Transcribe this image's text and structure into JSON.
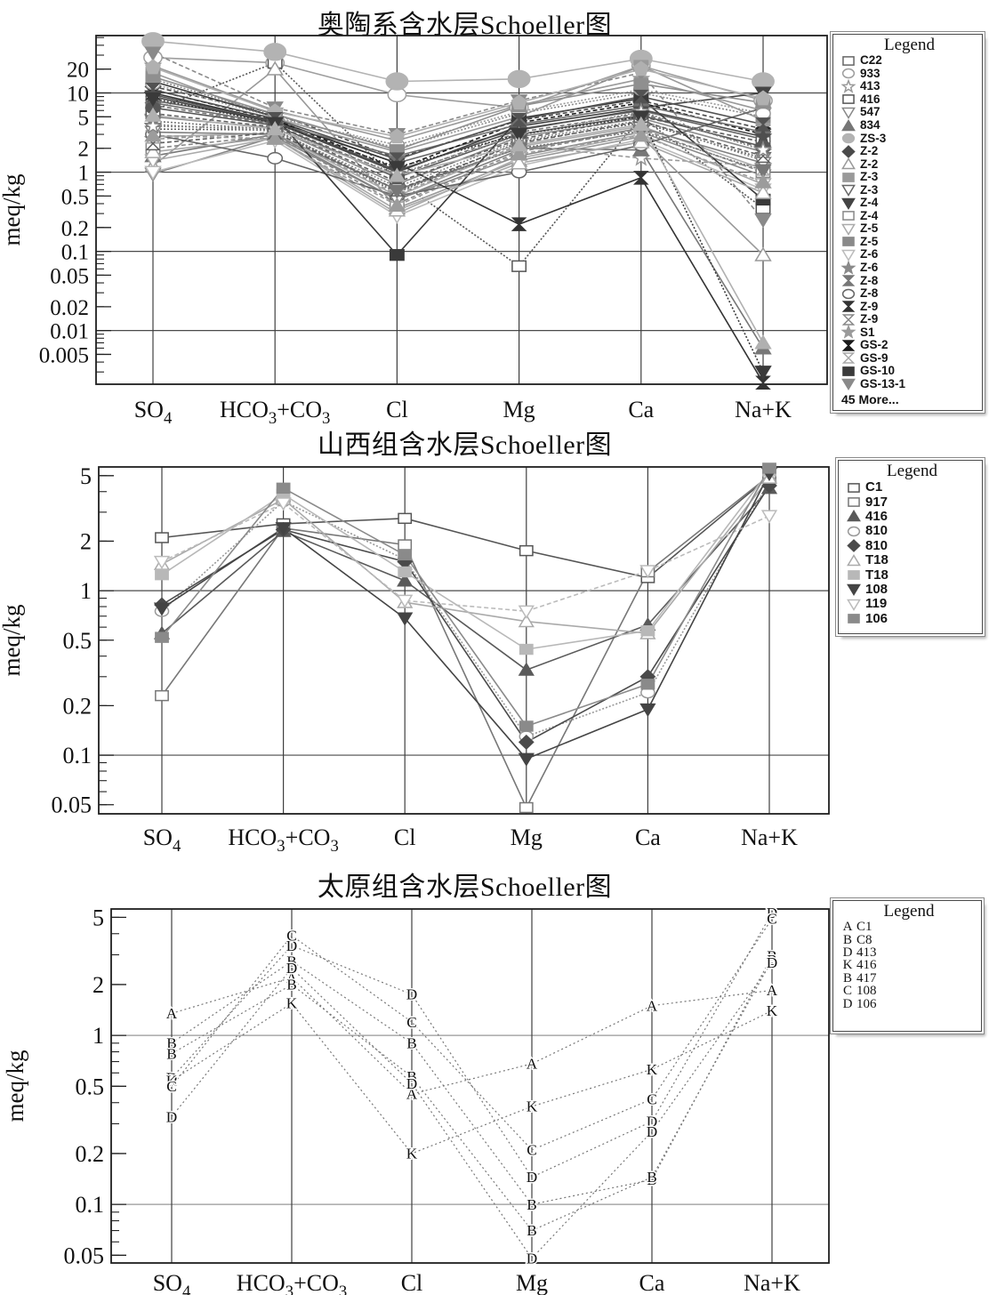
{
  "figure": {
    "background": "#ffffff",
    "ink": "#1a1a1a"
  },
  "chart_data": [
    {
      "type": "line",
      "title": "奥陶系含水层Schoeller图",
      "ylabel": "meq/kg",
      "legend_title": "Legend",
      "legend_more": "45 More...",
      "legend_position": "right",
      "grid": "on",
      "x_categories": [
        "SO4",
        "HCO3+CO3",
        "Cl",
        "Mg",
        "Ca",
        "Na+K"
      ],
      "x_categories_fmt": [
        "SO_4",
        "HCO_3+CO_3",
        "Cl",
        "Mg",
        "Ca",
        "Na+K"
      ],
      "y_axis": {
        "scale": "log",
        "min": 0.0021,
        "max": 53,
        "tick_labels": [
          20,
          10,
          5,
          2,
          1,
          0.5,
          0.2,
          0.1,
          0.05,
          0.02,
          0.01,
          0.005
        ],
        "grid_values": [
          10,
          1,
          0.1,
          0.01
        ]
      },
      "series": [
        {
          "name": "C22",
          "marker": "square-open",
          "color": "#666666",
          "dash": "",
          "values": [
            8,
            4.5,
            1.3,
            3.5,
            6,
            2.6
          ]
        },
        {
          "name": "933",
          "marker": "circle-open",
          "color": "#9e9e9e",
          "dash": "",
          "sz": 1.25,
          "values": [
            28,
            24,
            9.5,
            6.5,
            22,
            8
          ]
        },
        {
          "name": "413",
          "marker": "star-open",
          "color": "#999999",
          "dash": "5,3",
          "values": [
            2.6,
            3.2,
            0.52,
            2.2,
            1.5,
            1.2
          ]
        },
        {
          "name": "416",
          "marker": "square-open",
          "color": "#555555",
          "dash": "2,2",
          "values": [
            6,
            24,
            0.8,
            0.065,
            5,
            0.35
          ]
        },
        {
          "name": "547",
          "marker": "triangle-down-open",
          "color": "#888888",
          "dash": "",
          "values": [
            0.95,
            2.8,
            0.45,
            1.6,
            3.2,
            0.9
          ]
        },
        {
          "name": "834",
          "marker": "triangle-up-filled",
          "color": "#777777",
          "dash": "",
          "values": [
            1.6,
            3.0,
            0.6,
            2.0,
            1.9,
            0.006
          ]
        },
        {
          "name": "ZS-3",
          "marker": "circle-filled",
          "color": "#b3b3b3",
          "dash": "",
          "sz": 1.5,
          "values": [
            45,
            33,
            14,
            15,
            27,
            14
          ]
        },
        {
          "name": "Z-2",
          "marker": "diamond-filled",
          "color": "#4a4a4a",
          "dash": "5,3",
          "values": [
            12,
            5.5,
            1.5,
            4.5,
            8,
            3.5
          ]
        },
        {
          "name": "Z-2",
          "marker": "triangle-up-open",
          "color": "#999999",
          "dash": "",
          "values": [
            1.2,
            20,
            0.35,
            1.4,
            2.8,
            0.09
          ]
        },
        {
          "name": "Z-3",
          "marker": "square-filled",
          "color": "#9a9a9a",
          "dash": "",
          "values": [
            18,
            4.8,
            1.8,
            5,
            22,
            4.5
          ]
        },
        {
          "name": "Z-3",
          "marker": "triangle-down-open",
          "color": "#666666",
          "dash": "2,2",
          "values": [
            3.5,
            3.4,
            0.55,
            2.4,
            4.2,
            1.5
          ]
        },
        {
          "name": "Z-4",
          "marker": "triangle-down-filled",
          "color": "#444444",
          "dash": "",
          "values": [
            9,
            4.2,
            1.0,
            3.8,
            6.5,
            10
          ]
        },
        {
          "name": "Z-4",
          "marker": "square-open",
          "color": "#888888",
          "dash": "5,3",
          "values": [
            2.0,
            2.9,
            0.4,
            1.8,
            3.5,
            1.0
          ]
        },
        {
          "name": "Z-5",
          "marker": "triangle-down-open",
          "color": "#aaaaaa",
          "dash": "",
          "values": [
            1.4,
            2.7,
            0.3,
            1.5,
            3.0,
            0.7
          ]
        },
        {
          "name": "Z-5",
          "marker": "square-filled",
          "color": "#8a8a8a",
          "dash": "2,2",
          "values": [
            15,
            5.2,
            2.0,
            5.5,
            10,
            5
          ]
        },
        {
          "name": "Z-6",
          "marker": "triangle-down-open",
          "color": "#bbbbbb",
          "dash": "",
          "values": [
            1.0,
            2.5,
            0.28,
            1.2,
            2.6,
            0.6
          ]
        },
        {
          "name": "Z-6",
          "marker": "star-filled",
          "color": "#8a8a8a",
          "dash": "",
          "values": [
            5,
            3.6,
            0.7,
            2.8,
            4.8,
            1.8
          ]
        },
        {
          "name": "Z-8",
          "marker": "hourglass-filled",
          "color": "#777777",
          "dash": "5,3",
          "values": [
            7,
            4.0,
            0.9,
            3.2,
            5.5,
            2.0
          ]
        },
        {
          "name": "Z-8",
          "marker": "circle-open",
          "color": "#666666",
          "dash": "",
          "values": [
            3.0,
            1.5,
            0.5,
            1.0,
            2.2,
            6.5
          ]
        },
        {
          "name": "Z-9",
          "marker": "hourglass-filled",
          "color": "#333333",
          "dash": "",
          "values": [
            10,
            4.4,
            1.3,
            0.22,
            0.85,
            0.0022
          ]
        },
        {
          "name": "Z-9",
          "marker": "hourglass-open",
          "color": "#888888",
          "dash": "2,2",
          "values": [
            4,
            3.3,
            0.65,
            2.5,
            4.5,
            1.4
          ]
        },
        {
          "name": "S1",
          "marker": "star-filled",
          "color": "#9a9a9a",
          "dash": "",
          "values": [
            22,
            6,
            2.5,
            7,
            15,
            6
          ]
        },
        {
          "name": "GS-2",
          "marker": "hourglass-filled",
          "color": "#1a1a1a",
          "dash": "5,3",
          "values": [
            11,
            4.6,
            1.1,
            4.2,
            7.5,
            3.0
          ]
        },
        {
          "name": "GS-9",
          "marker": "hourglass-open",
          "color": "#aaaaaa",
          "dash": "",
          "values": [
            2.8,
            3.1,
            0.5,
            2.1,
            3.8,
            1.1
          ]
        },
        {
          "name": "GS-10",
          "marker": "square-filled",
          "color": "#3a3a3a",
          "dash": "",
          "values": [
            14,
            5.0,
            0.09,
            4.8,
            8.5,
            0.45
          ]
        },
        {
          "name": "GS-13-1",
          "marker": "triangle-down-filled",
          "color": "#8a8a8a",
          "dash": "5,3",
          "values": [
            32,
            6.5,
            3.0,
            8,
            18,
            0.25
          ]
        }
      ],
      "unlabeled_series": [
        {
          "marker": "triangle-down-open",
          "color": "#808080",
          "dash": "",
          "values": [
            3.2,
            3.0,
            0.45,
            1.9,
            3.6,
            1.3
          ]
        },
        {
          "marker": "square-open",
          "color": "#5f5f5f",
          "dash": "5,3",
          "values": [
            5.5,
            3.7,
            0.75,
            2.6,
            5.0,
            2.4
          ]
        },
        {
          "marker": "diamond-filled",
          "color": "#707070",
          "dash": "",
          "values": [
            7.5,
            4.1,
            1.6,
            4.0,
            7.0,
            3.2
          ]
        },
        {
          "marker": "circle-open",
          "color": "#999999",
          "dash": "2,2",
          "values": [
            13,
            4.9,
            2.2,
            5.8,
            11,
            5.5
          ]
        },
        {
          "marker": "triangle-up-open",
          "color": "#a8a8a8",
          "dash": "",
          "values": [
            1.8,
            2.75,
            0.33,
            1.3,
            2.4,
            0.55
          ]
        },
        {
          "marker": "hourglass-open",
          "color": "#606060",
          "dash": "5,3",
          "values": [
            2.3,
            3.15,
            0.6,
            2.3,
            4.4,
            1.6
          ]
        },
        {
          "marker": "star-filled",
          "color": "#4f4f4f",
          "dash": "",
          "values": [
            9.5,
            4.35,
            1.05,
            3.4,
            6.2,
            2.8
          ]
        },
        {
          "marker": "square-filled",
          "color": "#8f8f8f",
          "dash": "",
          "values": [
            16,
            5.4,
            1.9,
            6.8,
            13,
            7.5
          ]
        },
        {
          "marker": "triangle-down-filled",
          "color": "#777777",
          "dash": "2,2",
          "values": [
            4.4,
            3.45,
            0.58,
            2.0,
            3.3,
            1.05
          ]
        },
        {
          "marker": "circle-filled",
          "color": "#585858",
          "dash": "",
          "values": [
            6.5,
            3.9,
            0.85,
            3.0,
            5.2,
            2.1
          ]
        },
        {
          "marker": "pentagon-filled",
          "color": "#b0b0b0",
          "dash": "",
          "values": [
            21,
            5.8,
            2.8,
            7.5,
            20,
            8.5
          ]
        },
        {
          "marker": "triangle-up-filled",
          "color": "#9c9c9c",
          "dash": "5,3",
          "values": [
            2.9,
            2.65,
            0.38,
            1.7,
            2.9,
            0.75
          ]
        },
        {
          "marker": "hourglass-filled",
          "color": "#525252",
          "dash": "",
          "values": [
            11,
            4.7,
            1.45,
            4.6,
            9.0,
            4.0
          ]
        },
        {
          "marker": "star-open",
          "color": "#868686",
          "dash": "2,2",
          "values": [
            3.8,
            3.55,
            0.95,
            2.9,
            5.8,
            1.9
          ]
        },
        {
          "marker": "triangle-down-filled",
          "color": "#3a3a3a",
          "dash": "2,2",
          "values": [
            8.5,
            4.15,
            1.15,
            3.0,
            5.0,
            0.003
          ]
        },
        {
          "marker": "triangle-up-filled",
          "color": "#b0b0b0",
          "dash": "",
          "values": [
            5.2,
            3.5,
            0.9,
            2.2,
            4.0,
            0.007
          ]
        }
      ]
    },
    {
      "type": "line",
      "title": "山西组含水层Schoeller图",
      "ylabel": "meq/kg",
      "legend_title": "Legend",
      "legend_position": "right",
      "grid": "on",
      "x_categories": [
        "SO4",
        "HCO3+CO3",
        "Cl",
        "Mg",
        "Ca",
        "Na+K"
      ],
      "x_categories_fmt": [
        "SO_4",
        "HCO_3+CO_3",
        "Cl",
        "Mg",
        "Ca",
        "Na+K"
      ],
      "y_axis": {
        "scale": "log",
        "min": 0.044,
        "max": 5.65,
        "tick_labels": [
          5,
          2,
          1,
          0.5,
          0.2,
          0.1,
          0.05
        ],
        "grid_values": [
          1,
          0.1
        ]
      },
      "series": [
        {
          "name": "C1",
          "marker": "square-open",
          "color": "#555555",
          "dash": "",
          "values": [
            2.1,
            2.55,
            2.75,
            1.75,
            1.2,
            4.95
          ]
        },
        {
          "name": "917",
          "marker": "square-open",
          "color": "#777777",
          "dash": "",
          "values": [
            0.23,
            2.4,
            1.9,
            0.048,
            1.3,
            5.0
          ]
        },
        {
          "name": "416",
          "marker": "triangle-up-filled",
          "color": "#5a5a5a",
          "dash": "",
          "values": [
            0.55,
            2.3,
            1.15,
            0.33,
            0.62,
            4.2
          ]
        },
        {
          "name": "810",
          "marker": "circle-open",
          "color": "#999999",
          "dash": "2,2",
          "values": [
            0.75,
            3.5,
            1.55,
            0.13,
            0.24,
            4.6
          ]
        },
        {
          "name": "810",
          "marker": "diamond-filled",
          "color": "#4a4a4a",
          "dash": "",
          "values": [
            0.82,
            2.35,
            1.5,
            0.12,
            0.3,
            4.35
          ]
        },
        {
          "name": "T18",
          "marker": "triangle-up-open",
          "color": "#aaaaaa",
          "dash": "",
          "values": [
            1.45,
            3.6,
            0.85,
            0.65,
            0.55,
            4.85
          ]
        },
        {
          "name": "T18",
          "marker": "square-filled",
          "color": "#b8b8b8",
          "dash": "",
          "values": [
            1.25,
            3.85,
            1.3,
            0.44,
            0.57,
            5.35
          ]
        },
        {
          "name": "108",
          "marker": "triangle-down-filled",
          "color": "#444444",
          "dash": "",
          "values": [
            0.78,
            2.4,
            0.68,
            0.095,
            0.19,
            5.15
          ]
        },
        {
          "name": "119",
          "marker": "triangle-down-open",
          "color": "#bbbbbb",
          "dash": "5,3",
          "values": [
            1.5,
            3.4,
            0.87,
            0.75,
            1.32,
            2.85
          ]
        },
        {
          "name": "106",
          "marker": "square-filled",
          "color": "#8a8a8a",
          "dash": "",
          "values": [
            0.52,
            4.2,
            1.65,
            0.15,
            0.27,
            5.55
          ]
        }
      ]
    },
    {
      "type": "line",
      "title": "太原组含水层Schoeller图",
      "ylabel": "meq/kg",
      "legend_title": "Legend",
      "legend_position": "right",
      "grid": "on",
      "x_categories": [
        "SO4",
        "HCO3+CO3",
        "Cl",
        "Mg",
        "Ca",
        "Na+K"
      ],
      "x_categories_fmt": [
        "SO_4",
        "HCO_3+CO_3",
        "Cl",
        "Mg",
        "Ca",
        "Na+K"
      ],
      "y_axis": {
        "scale": "log",
        "min": 0.045,
        "max": 5.6,
        "tick_labels": [
          5,
          2,
          1,
          0.5,
          0.2,
          0.1,
          0.05
        ],
        "grid_values": [
          1,
          0.1
        ]
      },
      "series": [
        {
          "name": "C1",
          "marker": "letter",
          "glyph": "A",
          "color": "#787878",
          "dash": "2,3",
          "values": [
            1.35,
            2.2,
            0.45,
            0.68,
            1.5,
            1.85
          ]
        },
        {
          "name": "C8",
          "marker": "letter",
          "glyph": "B",
          "color": "#787878",
          "dash": "2,3",
          "values": [
            0.9,
            2.75,
            0.9,
            0.1,
            0.14,
            2.95
          ]
        },
        {
          "name": "413",
          "marker": "letter",
          "glyph": "D",
          "color": "#787878",
          "dash": "2,3",
          "values": [
            0.56,
            3.4,
            1.75,
            0.145,
            0.31,
            5.3
          ]
        },
        {
          "name": "416",
          "marker": "letter",
          "glyph": "K",
          "color": "#787878",
          "dash": "2,3",
          "values": [
            0.54,
            1.55,
            0.2,
            0.38,
            0.63,
            1.4
          ]
        },
        {
          "name": "417",
          "marker": "letter",
          "glyph": "B",
          "color": "#787878",
          "dash": "2,3",
          "values": [
            0.78,
            2.0,
            0.57,
            0.07,
            0.145,
            2.8
          ]
        },
        {
          "name": "108",
          "marker": "letter",
          "glyph": "C",
          "color": "#787878",
          "dash": "2,3",
          "values": [
            0.5,
            3.9,
            1.2,
            0.21,
            0.42,
            4.9
          ]
        },
        {
          "name": "106",
          "marker": "letter",
          "glyph": "D",
          "color": "#787878",
          "dash": "2,3",
          "values": [
            0.33,
            2.5,
            0.52,
            0.048,
            0.27,
            2.7
          ]
        }
      ]
    }
  ]
}
